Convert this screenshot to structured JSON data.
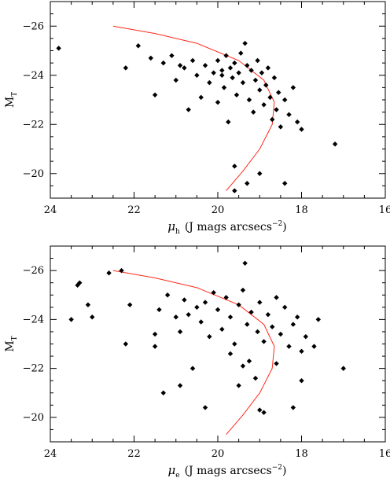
{
  "chart_data": [
    {
      "type": "scatter",
      "xlabel": {
        "symbol": "μ",
        "subscript": "h",
        "units": "(J mags arcsecs",
        "exponent": "−2",
        "close": ")"
      },
      "ylabel": {
        "main": "M",
        "subscript": "T"
      },
      "xlim": [
        24,
        16
      ],
      "ylim": [
        -19,
        -27
      ],
      "x_ticks": [
        24,
        22,
        20,
        18,
        16
      ],
      "y_ticks": [
        -26,
        -24,
        -22,
        -20
      ],
      "curve": [
        [
          22.5,
          -26.0
        ],
        [
          21.5,
          -25.7
        ],
        [
          20.5,
          -25.3
        ],
        [
          19.5,
          -24.6
        ],
        [
          18.9,
          -23.8
        ],
        [
          18.65,
          -22.9
        ],
        [
          18.7,
          -22.0
        ],
        [
          19.0,
          -21.0
        ],
        [
          19.4,
          -20.1
        ],
        [
          19.8,
          -19.3
        ]
      ],
      "points": [
        [
          23.8,
          -25.1
        ],
        [
          21.9,
          -25.2
        ],
        [
          21.6,
          -24.7
        ],
        [
          21.3,
          -24.5
        ],
        [
          21.1,
          -24.8
        ],
        [
          20.9,
          -24.4
        ],
        [
          20.8,
          -24.3
        ],
        [
          20.6,
          -24.6
        ],
        [
          20.5,
          -24.0
        ],
        [
          20.3,
          -24.4
        ],
        [
          20.2,
          -23.7
        ],
        [
          20.1,
          -24.1
        ],
        [
          20.0,
          -24.6
        ],
        [
          19.9,
          -24.2
        ],
        [
          19.85,
          -23.5
        ],
        [
          19.8,
          -24.8
        ],
        [
          19.7,
          -24.3
        ],
        [
          19.65,
          -23.9
        ],
        [
          19.6,
          -24.5
        ],
        [
          19.55,
          -23.2
        ],
        [
          19.5,
          -24.1
        ],
        [
          19.45,
          -24.9
        ],
        [
          19.4,
          -23.7
        ],
        [
          19.35,
          -25.3
        ],
        [
          19.3,
          -24.4
        ],
        [
          19.25,
          -23.0
        ],
        [
          19.2,
          -24.2
        ],
        [
          19.15,
          -22.5
        ],
        [
          19.1,
          -23.8
        ],
        [
          19.05,
          -24.6
        ],
        [
          19.0,
          -23.4
        ],
        [
          18.95,
          -24.1
        ],
        [
          18.9,
          -22.8
        ],
        [
          18.85,
          -23.6
        ],
        [
          18.8,
          -24.3
        ],
        [
          18.75,
          -23.1
        ],
        [
          18.7,
          -22.2
        ],
        [
          18.65,
          -23.9
        ],
        [
          18.6,
          -22.6
        ],
        [
          18.55,
          -23.3
        ],
        [
          18.5,
          -21.9
        ],
        [
          18.4,
          -23.0
        ],
        [
          18.3,
          -22.4
        ],
        [
          18.2,
          -23.5
        ],
        [
          18.1,
          -22.1
        ],
        [
          18.0,
          -21.8
        ],
        [
          17.2,
          -21.2
        ],
        [
          19.6,
          -20.3
        ],
        [
          19.3,
          -19.6
        ],
        [
          19.0,
          -20.0
        ],
        [
          18.4,
          -19.6
        ],
        [
          19.6,
          -19.3
        ],
        [
          19.9,
          -24.0
        ],
        [
          20.4,
          -23.1
        ],
        [
          20.7,
          -22.6
        ],
        [
          21.5,
          -23.2
        ],
        [
          21.0,
          -23.8
        ],
        [
          22.2,
          -24.3
        ],
        [
          20.0,
          -22.9
        ],
        [
          19.75,
          -22.1
        ]
      ]
    },
    {
      "type": "scatter",
      "xlabel": {
        "symbol": "μ",
        "subscript": "e",
        "units": "(J mags arcsecs",
        "exponent": "−2",
        "close": ")"
      },
      "ylabel": {
        "main": "M",
        "subscript": "T"
      },
      "xlim": [
        24,
        16
      ],
      "ylim": [
        -19,
        -27
      ],
      "x_ticks": [
        24,
        22,
        20,
        18,
        16
      ],
      "y_ticks": [
        -26,
        -24,
        -22,
        -20
      ],
      "curve": [
        [
          22.5,
          -26.0
        ],
        [
          21.5,
          -25.7
        ],
        [
          20.5,
          -25.3
        ],
        [
          19.5,
          -24.6
        ],
        [
          18.9,
          -23.8
        ],
        [
          18.65,
          -22.9
        ],
        [
          18.7,
          -22.0
        ],
        [
          19.0,
          -21.0
        ],
        [
          19.4,
          -20.1
        ],
        [
          19.8,
          -19.3
        ]
      ],
      "points": [
        [
          23.3,
          -25.5
        ],
        [
          23.35,
          -25.4
        ],
        [
          23.1,
          -24.6
        ],
        [
          23.5,
          -24.0
        ],
        [
          23.0,
          -24.1
        ],
        [
          22.3,
          -26.0
        ],
        [
          22.6,
          -25.9
        ],
        [
          22.1,
          -24.6
        ],
        [
          22.2,
          -23.0
        ],
        [
          21.5,
          -22.9
        ],
        [
          21.5,
          -23.4
        ],
        [
          21.4,
          -24.4
        ],
        [
          21.3,
          -21.0
        ],
        [
          21.2,
          -25.0
        ],
        [
          21.0,
          -24.1
        ],
        [
          20.9,
          -23.5
        ],
        [
          20.8,
          -24.8
        ],
        [
          20.7,
          -24.2
        ],
        [
          20.6,
          -22.0
        ],
        [
          20.5,
          -24.5
        ],
        [
          20.4,
          -23.9
        ],
        [
          20.3,
          -24.7
        ],
        [
          20.2,
          -23.3
        ],
        [
          20.1,
          -25.1
        ],
        [
          20.0,
          -24.4
        ],
        [
          19.9,
          -23.6
        ],
        [
          19.8,
          -24.9
        ],
        [
          19.7,
          -24.1
        ],
        [
          19.6,
          -23.0
        ],
        [
          19.5,
          -24.6
        ],
        [
          19.4,
          -25.2
        ],
        [
          19.35,
          -26.3
        ],
        [
          19.3,
          -23.8
        ],
        [
          19.25,
          -22.3
        ],
        [
          19.2,
          -24.3
        ],
        [
          19.1,
          -21.6
        ],
        [
          19.05,
          -23.5
        ],
        [
          19.0,
          -24.7
        ],
        [
          18.9,
          -23.1
        ],
        [
          18.8,
          -24.2
        ],
        [
          18.7,
          -23.7
        ],
        [
          18.6,
          -24.9
        ],
        [
          18.5,
          -23.4
        ],
        [
          18.4,
          -24.5
        ],
        [
          18.3,
          -22.9
        ],
        [
          18.2,
          -23.8
        ],
        [
          18.1,
          -24.1
        ],
        [
          18.0,
          -22.7
        ],
        [
          17.9,
          -23.3
        ],
        [
          17.7,
          -22.9
        ],
        [
          17.6,
          -24.0
        ],
        [
          17.0,
          -22.0
        ],
        [
          18.2,
          -20.4
        ],
        [
          19.0,
          -20.3
        ],
        [
          18.9,
          -20.2
        ],
        [
          19.5,
          -21.3
        ],
        [
          20.3,
          -20.4
        ],
        [
          20.9,
          -21.3
        ],
        [
          19.7,
          -22.6
        ],
        [
          19.4,
          -22.1
        ],
        [
          18.0,
          -21.5
        ],
        [
          18.6,
          -22.2
        ]
      ]
    }
  ]
}
